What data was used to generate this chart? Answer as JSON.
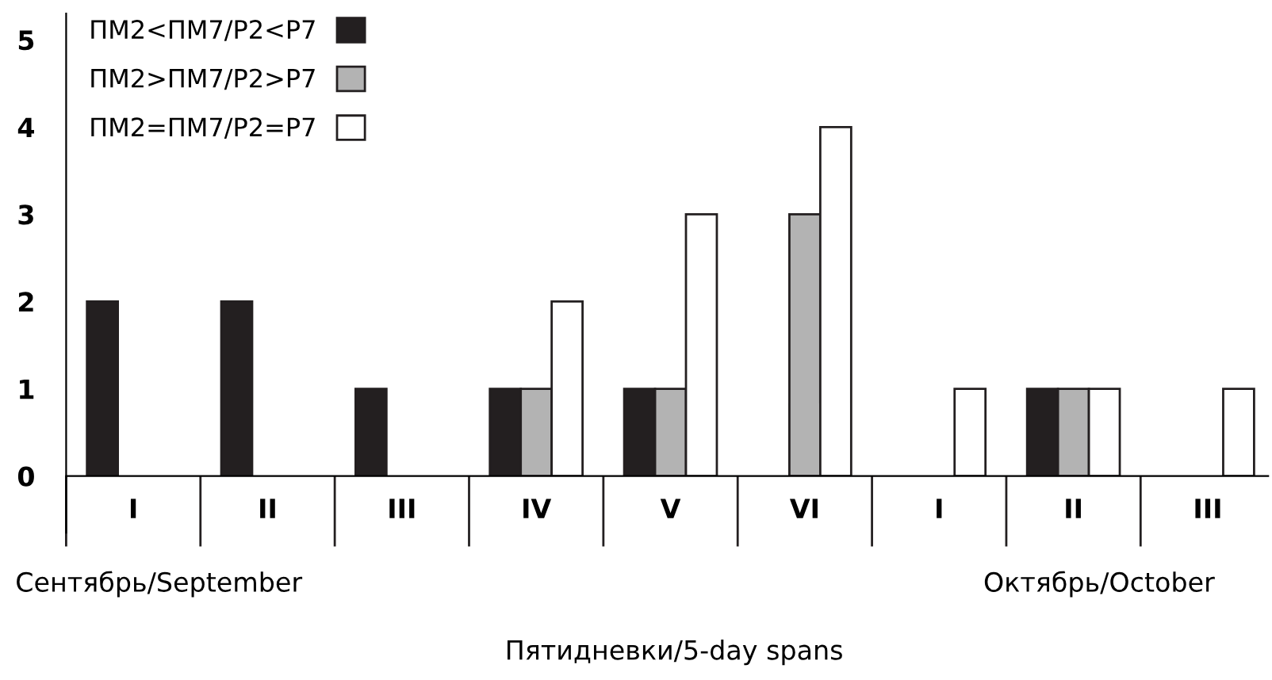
{
  "chart_data": {
    "type": "bar",
    "categories": [
      "I",
      "II",
      "III",
      "IV",
      "V",
      "VI",
      "I",
      "II",
      "III"
    ],
    "series": [
      {
        "name": "ПМ2<ПМ7/Р2<Р7",
        "color": "#231f20",
        "values": [
          2,
          2,
          1,
          1,
          1,
          0,
          0,
          1,
          0
        ]
      },
      {
        "name": "ПМ2>ПМ7/Р2>Р7",
        "color": "#b3b3b3",
        "values": [
          0,
          0,
          0,
          1,
          1,
          3,
          0,
          1,
          0
        ]
      },
      {
        "name": "ПМ2=ПМ7/Р2=Р7",
        "color": "#ffffff",
        "values": [
          0,
          0,
          0,
          2,
          3,
          4,
          1,
          1,
          1
        ]
      }
    ],
    "ylim": [
      0,
      5.3
    ],
    "yticks": [
      0,
      1,
      2,
      3,
      4,
      5
    ],
    "grid": false,
    "legend": "top left",
    "xlabel": "Пятидневки/5-day spans",
    "annotations": [
      "Сентябрь/September",
      "Октябрь/October"
    ]
  }
}
